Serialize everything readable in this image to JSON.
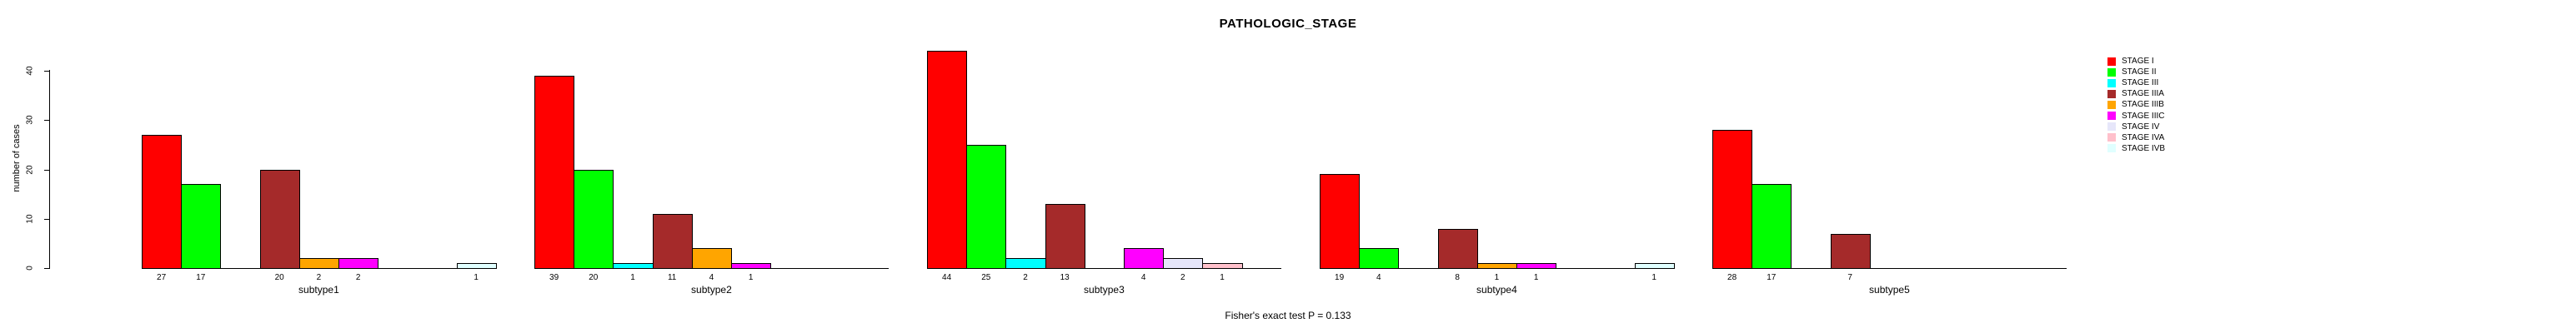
{
  "figure": {
    "title": "PATHOLOGIC_STAGE",
    "y_axis_title": "number of cases",
    "footnote": "Fisher's exact test P = 0.133"
  },
  "chart_data": {
    "type": "bar",
    "title": "PATHOLOGIC_STAGE",
    "ylabel": "number of cases",
    "xlabel": "",
    "ylim": [
      0,
      40
    ],
    "yticks": [
      0,
      10,
      20,
      30,
      40
    ],
    "grid": false,
    "legend_position": "right",
    "bar_value_labels_shown": true,
    "stages": [
      {
        "label": "STAGE I",
        "color": "#FF0000"
      },
      {
        "label": "STAGE II",
        "color": "#00FF00"
      },
      {
        "label": "STAGE III",
        "color": "#00FFFF"
      },
      {
        "label": "STAGE IIIA",
        "color": "#A52A2A"
      },
      {
        "label": "STAGE IIIB",
        "color": "#FFA500"
      },
      {
        "label": "STAGE IIIC",
        "color": "#FF00FF"
      },
      {
        "label": "STAGE IV",
        "color": "#E6E6FA"
      },
      {
        "label": "STAGE IVA",
        "color": "#FFC0CB"
      },
      {
        "label": "STAGE IVB",
        "color": "#E0FFFF"
      }
    ],
    "groups": [
      {
        "label": "subtype1",
        "values": [
          27,
          17,
          0,
          20,
          2,
          2,
          0,
          0,
          1
        ]
      },
      {
        "label": "subtype2",
        "values": [
          39,
          20,
          1,
          11,
          4,
          1,
          0,
          0,
          0
        ]
      },
      {
        "label": "subtype3",
        "values": [
          44,
          25,
          2,
          13,
          0,
          4,
          2,
          1,
          0
        ]
      },
      {
        "label": "subtype4",
        "values": [
          19,
          4,
          0,
          8,
          1,
          1,
          0,
          0,
          1
        ]
      },
      {
        "label": "subtype5",
        "values": [
          28,
          17,
          0,
          7,
          0,
          0,
          0,
          0,
          0
        ]
      }
    ],
    "footnote": "Fisher's exact test P = 0.133"
  }
}
